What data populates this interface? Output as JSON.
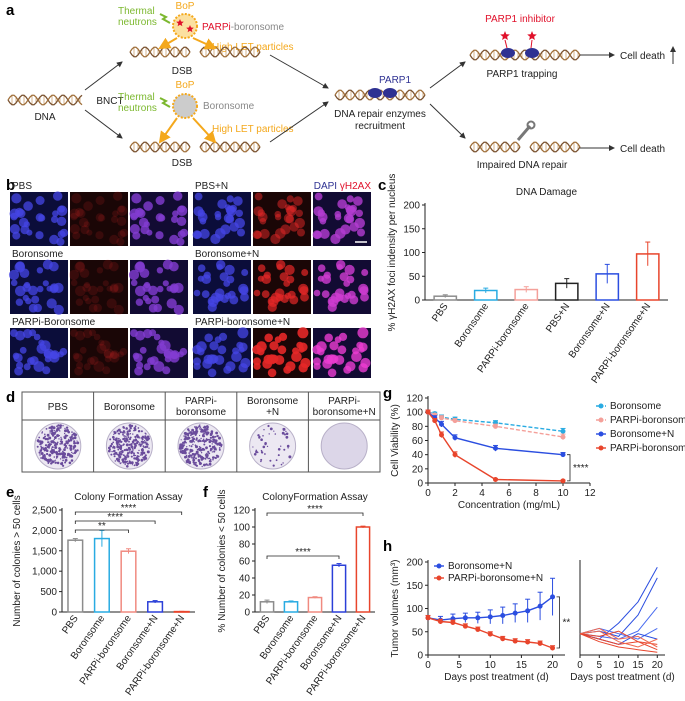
{
  "panel_a": {
    "label": "a",
    "top_bop": "BoP",
    "top_neutrons": [
      "Thermal",
      "neutrons"
    ],
    "top_agent_prefix": "PARPi",
    "top_agent_suffix": "-boronsome",
    "top_particles": "High LET particles",
    "top_dsb": "DSB",
    "dna": "DNA",
    "bnct": "BNCT",
    "bottom_bop": "BoP",
    "bottom_neutrons": [
      "Thermal",
      "neutrons"
    ],
    "bottom_agent": "Boronsome",
    "bottom_particles": "High LET particles",
    "bottom_dsb": "DSB",
    "parp1": "PARP1",
    "recruitment": [
      "DNA repair enzymes",
      "recruitment"
    ],
    "inhibitor": "PARP1 inhibitor",
    "trapping": "PARP1 trapping",
    "cell_death_top": "Cell death",
    "impaired": "Impaired DNA repair",
    "cell_death_bottom": "Cell death"
  },
  "panel_b": {
    "label": "b",
    "labels": [
      "PBS",
      "PBS+N",
      "Boronsome",
      "Boronsome+N",
      "PARPi-Boronsome",
      "PARPi-boronsome+N"
    ],
    "channels": [
      "DAPI",
      "γH2AX"
    ]
  },
  "panel_d": {
    "label": "d",
    "columns": [
      [
        "PBS"
      ],
      [
        "Boronsome"
      ],
      [
        "PARPi-",
        "boronsome"
      ],
      [
        "Boronsome",
        "+N"
      ],
      [
        "PARPi-",
        "boronsome+N"
      ]
    ]
  },
  "chart_data": [
    {
      "type": "bar",
      "panel_label": "c",
      "title": "DNA Damage",
      "y_label": "% γH2AX foci indensity per nucleus",
      "categories": [
        "PBS",
        "Boronsome",
        "PARPi-boronsome",
        "PBS+N",
        "Boronsome+N",
        "PARPi-boronsome+N"
      ],
      "values": [
        8,
        20,
        22,
        35,
        55,
        97
      ],
      "errors": [
        3,
        5,
        6,
        10,
        20,
        25
      ],
      "colors": [
        "#8c8c8c",
        "#29abe2",
        "#f4a09a",
        "#222222",
        "#2b4ee0",
        "#e8452c"
      ],
      "ylim": [
        0,
        200
      ],
      "yticks": [
        0,
        50,
        100,
        150,
        200
      ]
    },
    {
      "type": "bar",
      "panel_label": "e",
      "title": "Colony Formation Assay",
      "y_label": "Number of colonies > 50 cells",
      "categories": [
        "PBS",
        "Boronsome",
        "PARPi-boronsome",
        "Boronsome+N",
        "PARPi-boronsome+N"
      ],
      "values": [
        1760,
        1800,
        1490,
        250,
        10
      ],
      "errors": [
        40,
        200,
        60,
        30,
        5
      ],
      "colors": [
        "#8c8c8c",
        "#29abe2",
        "#f08a80",
        "#2b3fd8",
        "#e8452c"
      ],
      "ylim": [
        0,
        2500
      ],
      "yticks": [
        0,
        500,
        {
          "value": 1000,
          "label": "1,000"
        },
        {
          "value": 1500,
          "label": "1,500"
        },
        {
          "value": 2000,
          "label": "2,000"
        },
        {
          "value": 2500,
          "label": "2,500"
        }
      ],
      "annotations": [
        "****",
        "****",
        "**"
      ]
    },
    {
      "type": "bar",
      "panel_label": "f",
      "title": "ColonyFormation Assay",
      "y_label": "% Number of colonies < 50 cells",
      "categories": [
        "PBS",
        "Boronsome",
        "PARPi-boronsome",
        "Boronsome+N",
        "PARPi-boronsome+N"
      ],
      "values": [
        12,
        12,
        17,
        55,
        100
      ],
      "errors": [
        2,
        1,
        1,
        2,
        1
      ],
      "colors": [
        "#8c8c8c",
        "#29abe2",
        "#f08a80",
        "#2b3fd8",
        "#e8452c"
      ],
      "ylim": [
        0,
        120
      ],
      "yticks": [
        0,
        20,
        40,
        60,
        80,
        100,
        120
      ],
      "annotations": [
        "****",
        "****"
      ]
    },
    {
      "type": "line",
      "panel_label": "g",
      "y_label": "Cell Viability (%)",
      "x_label": "Concentration (mg/mL)",
      "x": [
        0,
        0.5,
        1,
        2,
        5,
        10
      ],
      "series": [
        {
          "name": "Boronsome",
          "color": "#29abe2",
          "dash": true,
          "values": [
            100,
            98,
            93,
            90,
            85,
            73
          ],
          "errors": [
            2,
            2,
            3,
            3,
            3,
            4
          ]
        },
        {
          "name": "PARPi-boronsome",
          "color": "#f4a09a",
          "dash": true,
          "values": [
            100,
            96,
            92,
            88,
            80,
            65
          ],
          "errors": [
            2,
            2,
            3,
            3,
            3,
            4
          ]
        },
        {
          "name": "Boronsome+N",
          "color": "#2b4ee0",
          "dash": false,
          "values": [
            100,
            92,
            83,
            64,
            49,
            40
          ],
          "errors": [
            3,
            3,
            4,
            4,
            4,
            3
          ]
        },
        {
          "name": "PARPi-boronsome+N",
          "color": "#e8452c",
          "dash": false,
          "values": [
            100,
            88,
            68,
            40,
            5,
            3
          ],
          "errors": [
            3,
            3,
            4,
            4,
            1,
            1
          ]
        }
      ],
      "xlim": [
        0,
        12
      ],
      "xticks": [
        0,
        2,
        4,
        6,
        8,
        10,
        12
      ],
      "ylim": [
        0,
        120
      ],
      "yticks": [
        0,
        20,
        40,
        60,
        80,
        100,
        120
      ],
      "legend": "right",
      "annotations": [
        "****"
      ]
    },
    {
      "type": "line",
      "panel_label": "h",
      "y_label": "Tumor volumes (mm³)",
      "x_label": "Days post treatment (d)",
      "x": [
        0,
        2,
        4,
        6,
        8,
        10,
        12,
        14,
        16,
        18,
        20
      ],
      "series": [
        {
          "name": "Boronsome+N",
          "color": "#2b4ee0",
          "dash": false,
          "values": [
            80,
            75,
            78,
            80,
            80,
            82,
            85,
            90,
            95,
            105,
            125
          ],
          "errors": [
            5,
            8,
            10,
            10,
            12,
            15,
            18,
            20,
            25,
            30,
            40
          ]
        },
        {
          "name": "PARPi-boronsome+N",
          "color": "#e8452c",
          "dash": false,
          "values": [
            80,
            72,
            70,
            62,
            55,
            45,
            35,
            30,
            28,
            25,
            15
          ],
          "errors": [
            5,
            5,
            5,
            5,
            5,
            5,
            5,
            5,
            5,
            5,
            5
          ]
        }
      ],
      "xlim": [
        0,
        22
      ],
      "xticks": [
        0,
        5,
        10,
        15,
        20
      ],
      "ylim": [
        0,
        200
      ],
      "yticks": [
        0,
        50,
        100,
        150,
        200
      ],
      "legend": "upper left",
      "annotations": [
        "**"
      ]
    },
    {
      "type": "line",
      "x_label": "Days post treatment (d)",
      "x": [
        0,
        5,
        10,
        15,
        20
      ],
      "markers": false,
      "series": [
        {
          "color": "#2b4ee0",
          "values": [
            80,
            60,
            120,
            200,
            330
          ]
        },
        {
          "color": "#2b4ee0",
          "values": [
            80,
            90,
            70,
            150,
            290
          ]
        },
        {
          "color": "#4a6cf0",
          "values": [
            80,
            70,
            60,
            90,
            180
          ]
        },
        {
          "color": "#4a6cf0",
          "values": [
            80,
            100,
            80,
            60,
            100
          ]
        },
        {
          "color": "#2b4ee0",
          "values": [
            80,
            60,
            40,
            80,
            60
          ]
        },
        {
          "color": "#e8452c",
          "values": [
            80,
            60,
            40,
            50,
            20
          ]
        },
        {
          "color": "#f06a50",
          "values": [
            80,
            90,
            50,
            30,
            60
          ]
        },
        {
          "color": "#e8452c",
          "values": [
            80,
            70,
            90,
            50,
            40
          ]
        },
        {
          "color": "#f06a50",
          "values": [
            80,
            100,
            60,
            70,
            30
          ]
        },
        {
          "color": "#e8452c",
          "values": [
            80,
            50,
            30,
            20,
            10
          ]
        }
      ],
      "xlim": [
        0,
        22
      ],
      "xticks": [
        0,
        5,
        10,
        15,
        20
      ],
      "ylim": [
        0,
        350
      ]
    }
  ]
}
